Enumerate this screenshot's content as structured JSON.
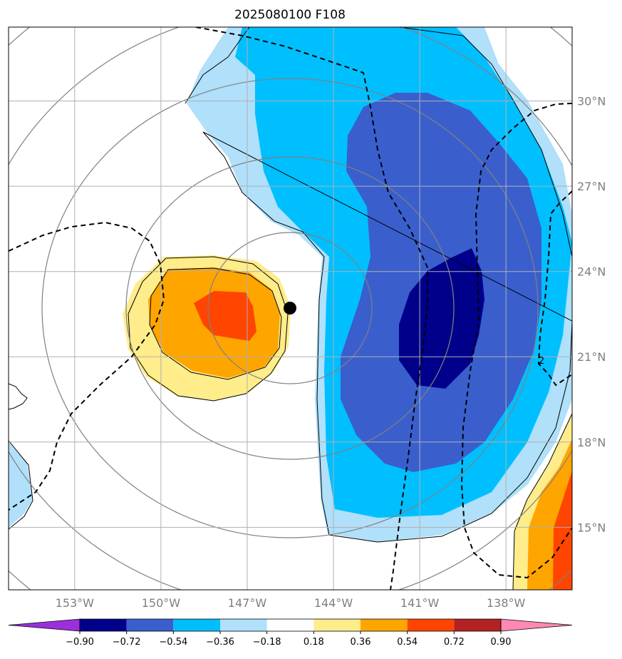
{
  "title": "2025080100 F108",
  "map": {
    "lon_range": [
      -155.3,
      -135.7
    ],
    "lat_range": [
      12.8,
      32.6
    ],
    "lon_ticks": [
      {
        "value": -153,
        "label": "153°W"
      },
      {
        "value": -150,
        "label": "150°W"
      },
      {
        "value": -147,
        "label": "147°W"
      },
      {
        "value": -144,
        "label": "144°W"
      },
      {
        "value": -141,
        "label": "141°W"
      },
      {
        "value": -138,
        "label": "138°W"
      }
    ],
    "lat_ticks": [
      {
        "value": 15,
        "label": "15°N"
      },
      {
        "value": 18,
        "label": "18°N"
      },
      {
        "value": 21,
        "label": "21°N"
      },
      {
        "value": 24,
        "label": "24°N"
      },
      {
        "value": 27,
        "label": "27°N"
      },
      {
        "value": 30,
        "label": "30°N"
      }
    ],
    "grid": true,
    "storm_center": {
      "lon": -145.5,
      "lat": 22.7
    },
    "range_rings_deg": [
      3,
      5.5,
      8,
      10.5,
      13
    ],
    "dashed_contour_label": "2",
    "colors": {
      "grid": "#b0b0b0",
      "ring": "#808080",
      "coast": "#000000"
    }
  },
  "colorbar": {
    "levels": [
      -0.9,
      -0.72,
      -0.54,
      -0.36,
      -0.18,
      0.18,
      0.36,
      0.54,
      0.72,
      0.9
    ],
    "labels": [
      "−0.90",
      "−0.72",
      "−0.54",
      "−0.36",
      "−0.18",
      "0.18",
      "0.36",
      "0.54",
      "0.72",
      "0.90"
    ],
    "colors": [
      "#9b30d9",
      "#00008b",
      "#3a5fcd",
      "#00bfff",
      "#b0e0fa",
      "#ffffff",
      "#ffec8b",
      "#ffa500",
      "#ff4500",
      "#b22222",
      "#ff88b4"
    ],
    "extend": "both"
  }
}
